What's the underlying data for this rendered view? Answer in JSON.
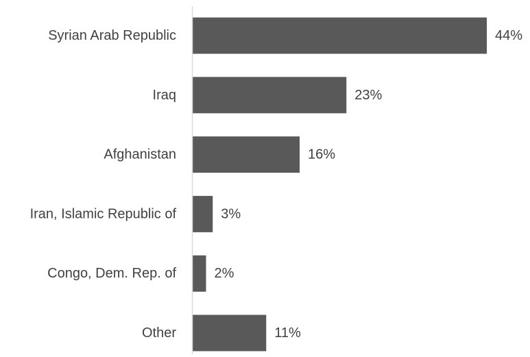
{
  "chart_data": {
    "type": "bar",
    "orientation": "horizontal",
    "categories": [
      "Syrian Arab Republic",
      "Iraq",
      "Afghanistan",
      "Iran, Islamic Republic of",
      "Congo, Dem. Rep. of",
      "Other"
    ],
    "values": [
      44,
      23,
      16,
      3,
      2,
      11
    ],
    "value_labels": [
      "44%",
      "23%",
      "16%",
      "3%",
      "2%",
      "11%"
    ],
    "unit": "%",
    "title": "",
    "xlabel": "",
    "ylabel": "",
    "xlim": [
      0,
      44
    ],
    "grid": false,
    "legend": "none",
    "colors": {
      "bar": "#595959",
      "axis": "#d9d9d9",
      "text": "#404040"
    }
  }
}
